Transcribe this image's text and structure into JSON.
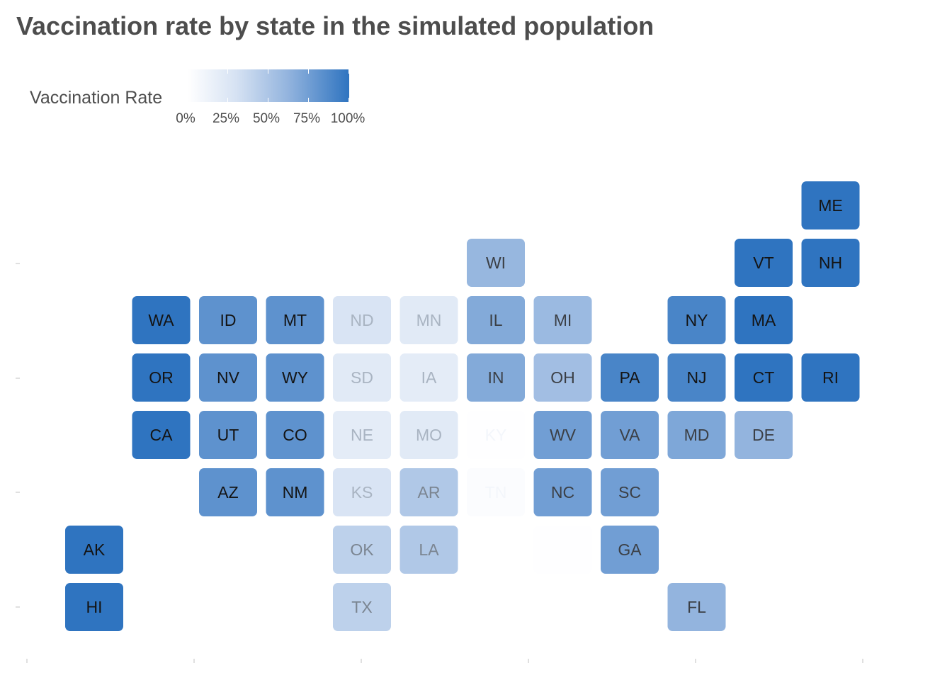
{
  "chart_data": {
    "type": "heatmap",
    "title": "Vaccination rate by state in the simulated population",
    "legend": {
      "title": "Vaccination Rate",
      "ticks": [
        "0%",
        "25%",
        "50%",
        "75%",
        "100%"
      ],
      "placement": "top-left",
      "low_color": "#ffffff",
      "high_color": "#2f74c0"
    },
    "grid": false,
    "states": [
      {
        "abbr": "ME",
        "col": 11,
        "row": 0,
        "value": 1.0
      },
      {
        "abbr": "WI",
        "col": 6,
        "row": 1,
        "value": 0.6
      },
      {
        "abbr": "VT",
        "col": 10,
        "row": 1,
        "value": 1.0
      },
      {
        "abbr": "NH",
        "col": 11,
        "row": 1,
        "value": 1.0
      },
      {
        "abbr": "WA",
        "col": 1,
        "row": 2,
        "value": 1.0
      },
      {
        "abbr": "ID",
        "col": 2,
        "row": 2,
        "value": 0.82
      },
      {
        "abbr": "MT",
        "col": 3,
        "row": 2,
        "value": 0.82
      },
      {
        "abbr": "ND",
        "col": 4,
        "row": 2,
        "value": 0.28
      },
      {
        "abbr": "MN",
        "col": 5,
        "row": 2,
        "value": 0.22
      },
      {
        "abbr": "IL",
        "col": 6,
        "row": 2,
        "value": 0.68
      },
      {
        "abbr": "MI",
        "col": 7,
        "row": 2,
        "value": 0.58
      },
      {
        "abbr": "NY",
        "col": 9,
        "row": 2,
        "value": 0.9
      },
      {
        "abbr": "MA",
        "col": 10,
        "row": 2,
        "value": 1.0
      },
      {
        "abbr": "OR",
        "col": 1,
        "row": 3,
        "value": 1.0
      },
      {
        "abbr": "NV",
        "col": 2,
        "row": 3,
        "value": 0.82
      },
      {
        "abbr": "WY",
        "col": 3,
        "row": 3,
        "value": 0.82
      },
      {
        "abbr": "SD",
        "col": 4,
        "row": 3,
        "value": 0.22
      },
      {
        "abbr": "IA",
        "col": 5,
        "row": 3,
        "value": 0.2
      },
      {
        "abbr": "IN",
        "col": 6,
        "row": 3,
        "value": 0.68
      },
      {
        "abbr": "OH",
        "col": 7,
        "row": 3,
        "value": 0.55
      },
      {
        "abbr": "PA",
        "col": 8,
        "row": 3,
        "value": 0.9
      },
      {
        "abbr": "NJ",
        "col": 9,
        "row": 3,
        "value": 0.9
      },
      {
        "abbr": "CT",
        "col": 10,
        "row": 3,
        "value": 1.0
      },
      {
        "abbr": "RI",
        "col": 11,
        "row": 3,
        "value": 1.0
      },
      {
        "abbr": "CA",
        "col": 1,
        "row": 4,
        "value": 1.0
      },
      {
        "abbr": "UT",
        "col": 2,
        "row": 4,
        "value": 0.82
      },
      {
        "abbr": "CO",
        "col": 3,
        "row": 4,
        "value": 0.82
      },
      {
        "abbr": "NE",
        "col": 4,
        "row": 4,
        "value": 0.2
      },
      {
        "abbr": "MO",
        "col": 5,
        "row": 4,
        "value": 0.22
      },
      {
        "abbr": "KY",
        "col": 6,
        "row": 4,
        "value": 0.01
      },
      {
        "abbr": "WV",
        "col": 7,
        "row": 4,
        "value": 0.75
      },
      {
        "abbr": "VA",
        "col": 8,
        "row": 4,
        "value": 0.75
      },
      {
        "abbr": "MD",
        "col": 9,
        "row": 4,
        "value": 0.7
      },
      {
        "abbr": "DE",
        "col": 10,
        "row": 4,
        "value": 0.62
      },
      {
        "abbr": "AZ",
        "col": 2,
        "row": 5,
        "value": 0.82
      },
      {
        "abbr": "NM",
        "col": 3,
        "row": 5,
        "value": 0.82
      },
      {
        "abbr": "KS",
        "col": 4,
        "row": 5,
        "value": 0.28
      },
      {
        "abbr": "AR",
        "col": 5,
        "row": 5,
        "value": 0.48
      },
      {
        "abbr": "TN",
        "col": 6,
        "row": 5,
        "value": 0.03
      },
      {
        "abbr": "NC",
        "col": 7,
        "row": 5,
        "value": 0.75
      },
      {
        "abbr": "SC",
        "col": 8,
        "row": 5,
        "value": 0.75
      },
      {
        "abbr": "AK",
        "col": 0,
        "row": 6,
        "value": 1.0
      },
      {
        "abbr": "OK",
        "col": 4,
        "row": 6,
        "value": 0.42
      },
      {
        "abbr": "LA",
        "col": 5,
        "row": 6,
        "value": 0.48
      },
      {
        "abbr": "",
        "col": 7,
        "row": 6,
        "value": 0.01
      },
      {
        "abbr": "GA",
        "col": 8,
        "row": 6,
        "value": 0.75
      },
      {
        "abbr": "HI",
        "col": 0,
        "row": 7,
        "value": 1.0
      },
      {
        "abbr": "TX",
        "col": 4,
        "row": 7,
        "value": 0.42
      },
      {
        "abbr": "FL",
        "col": 9,
        "row": 7,
        "value": 0.62
      }
    ]
  }
}
